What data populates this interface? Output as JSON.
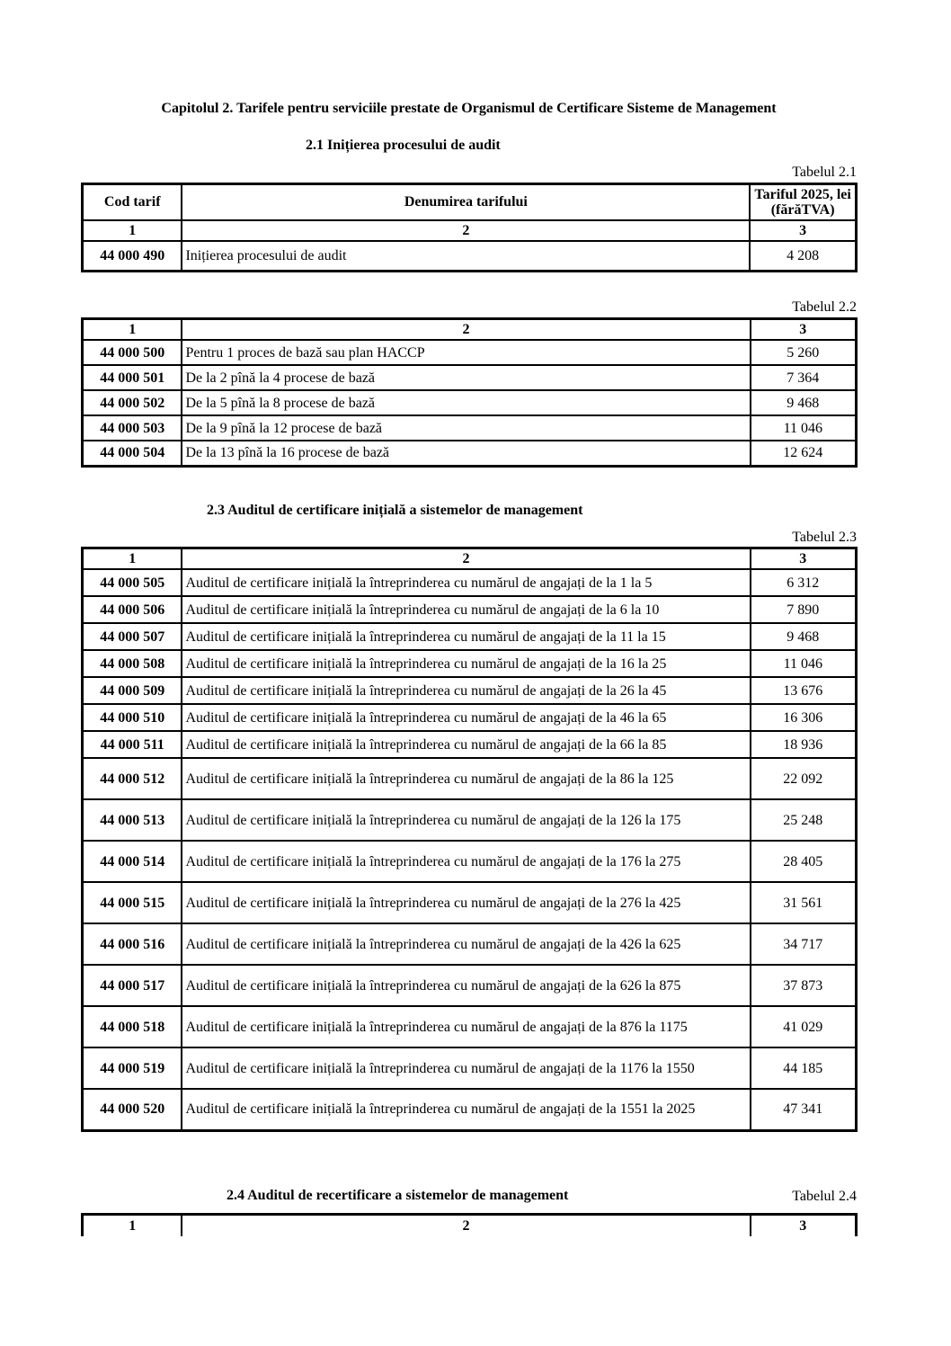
{
  "chapter_title": "Capitolul 2. Tarifele pentru serviciile prestate de Organismul de Certificare  Sisteme de Management",
  "columns": {
    "code": "Cod tarif",
    "name": "Denumirea tarifului",
    "price": "Tariful 2025, lei (fărăTVA)",
    "n1": "1",
    "n2": "2",
    "n3": "3"
  },
  "section_2_1": {
    "title": "2.1 Inițierea procesului de audit",
    "table_label": "Tabelul 2.1",
    "rows": [
      {
        "code": "44 000 490",
        "name": "Inițierea procesului de audit",
        "price": "4 208"
      }
    ]
  },
  "section_2_2": {
    "table_label": "Tabelul 2.2",
    "rows": [
      {
        "code": "44 000 500",
        "name": "Pentru 1 proces de bază sau plan HACCP",
        "price": "5 260"
      },
      {
        "code": "44 000 501",
        "name": "De la 2 pînă la 4 procese de bază",
        "price": "7 364"
      },
      {
        "code": "44 000 502",
        "name": "De la 5 pînă la 8 procese de bază",
        "price": "9 468"
      },
      {
        "code": "44 000 503",
        "name": "De la 9 pînă la 12 procese de bază",
        "price": "11 046"
      },
      {
        "code": "44 000 504",
        "name": "De la 13 pînă la 16 procese de bază",
        "price": "12 624"
      }
    ]
  },
  "section_2_3": {
    "title": "2.3 Auditul de certificare inițială a sistemelor de management",
    "table_label": "Tabelul 2.3",
    "rows": [
      {
        "code": "44 000 505",
        "name": "Auditul de certificare inițială  la întreprinderea cu numărul de angajați de la 1 la 5",
        "price": "6 312"
      },
      {
        "code": "44 000 506",
        "name": "Auditul de certificare inițială la întreprinderea cu numărul de angajați de la 6 la 10",
        "price": "7 890"
      },
      {
        "code": "44 000 507",
        "name": "Auditul de certificare inițială la întreprinderea cu numărul de angajați de la 11 la 15",
        "price": "9 468"
      },
      {
        "code": "44 000 508",
        "name": "Auditul de certificare inițială la întreprinderea cu numărul de angajați de la 16 la 25",
        "price": "11 046"
      },
      {
        "code": "44 000 509",
        "name": "Auditul de certificare inițială la întreprinderea cu numărul de angajați de la 26 la 45",
        "price": "13 676"
      },
      {
        "code": "44 000 510",
        "name": "Auditul de certificare inițială la întreprinderea cu numărul de angajați de la 46 la 65",
        "price": "16 306"
      },
      {
        "code": "44 000 511",
        "name": "Auditul de certificare inițială la întreprinderea cu numărul de angajați de la 66 la 85",
        "price": "18 936"
      },
      {
        "code": "44 000 512",
        "name": "Auditul de certificare  inițială la întreprinderea cu numărul de angajați de la 86 la 125",
        "price": "22 092"
      },
      {
        "code": "44 000 513",
        "name": "Auditul de certificare  inițială la întreprinderea cu numărul de angajați de la 126 la 175",
        "price": "25 248"
      },
      {
        "code": "44 000 514",
        "name": "Auditul de certificare  inițială la întreprinderea cu numărul de angajați de la 176 la 275",
        "price": "28 405"
      },
      {
        "code": "44 000 515",
        "name": "Auditul de certificare  inițială la întreprinderea cu numărul de angajați de la 276 la 425",
        "price": "31 561"
      },
      {
        "code": "44 000 516",
        "name": "Auditul de certificare  inițială la întreprinderea cu numărul de angajați de la 426 la 625",
        "price": "34 717"
      },
      {
        "code": "44 000 517",
        "name": "Auditul de certificare  inițială la întreprinderea cu numărul de angajați de la 626 la 875",
        "price": "37 873"
      },
      {
        "code": "44 000 518",
        "name": "Auditul de certificare  inițială la întreprinderea cu numărul de angajați de la 876 la 1175",
        "price": "41 029"
      },
      {
        "code": "44 000 519",
        "name": "Auditul de certificare  inițială la întreprinderea cu numărul de angajați de la 1176 la 1550",
        "price": "44 185"
      },
      {
        "code": "44 000 520",
        "name": "Auditul de certificare  inițială la întreprinderea cu numărul de angajați de la 1551 la 2025",
        "price": "47 341"
      }
    ]
  },
  "section_2_4": {
    "title": "2.4 Auditul de recertificare a sistemelor de management",
    "table_label": "Tabelul 2.4"
  }
}
